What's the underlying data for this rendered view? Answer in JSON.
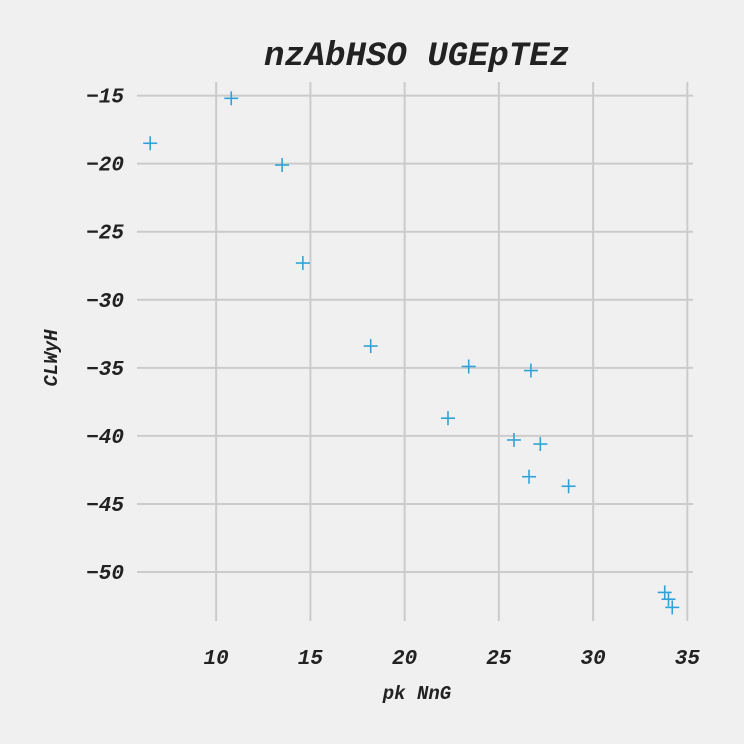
{
  "chart_data": {
    "type": "scatter",
    "title": "nzAbHSO UGEpTEz",
    "xlabel": "pk NnG",
    "ylabel": "CLWyH",
    "xlim": [
      5.8,
      35.3
    ],
    "ylim": [
      -53.6,
      -14.0
    ],
    "xticks": [
      10,
      15,
      20,
      25,
      30,
      35
    ],
    "yticks": [
      -15,
      -20,
      -25,
      -30,
      -35,
      -40,
      -45,
      -50
    ],
    "grid": true,
    "marker": "+",
    "color": "#30a2da",
    "points": [
      {
        "x": 6.5,
        "y": -18.5
      },
      {
        "x": 10.8,
        "y": -15.2
      },
      {
        "x": 13.5,
        "y": -20.1
      },
      {
        "x": 14.6,
        "y": -27.3
      },
      {
        "x": 18.2,
        "y": -33.4
      },
      {
        "x": 22.3,
        "y": -38.7
      },
      {
        "x": 23.4,
        "y": -34.9
      },
      {
        "x": 25.8,
        "y": -40.3
      },
      {
        "x": 26.6,
        "y": -43.0
      },
      {
        "x": 26.7,
        "y": -35.2
      },
      {
        "x": 27.2,
        "y": -40.6
      },
      {
        "x": 28.7,
        "y": -43.7
      },
      {
        "x": 33.8,
        "y": -51.5
      },
      {
        "x": 34.0,
        "y": -52.0
      },
      {
        "x": 34.2,
        "y": -52.6
      }
    ]
  }
}
